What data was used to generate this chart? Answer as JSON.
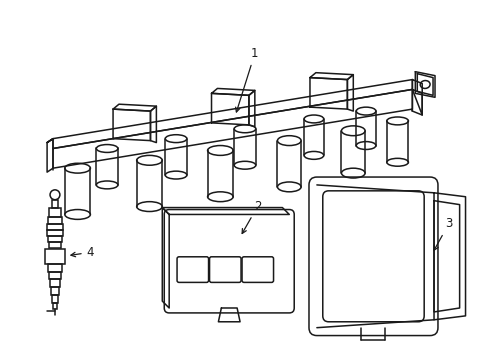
{
  "bg_color": "#ffffff",
  "line_color": "#1a1a1a",
  "line_width": 1.1,
  "fig_width": 4.89,
  "fig_height": 3.6,
  "dpi": 100
}
